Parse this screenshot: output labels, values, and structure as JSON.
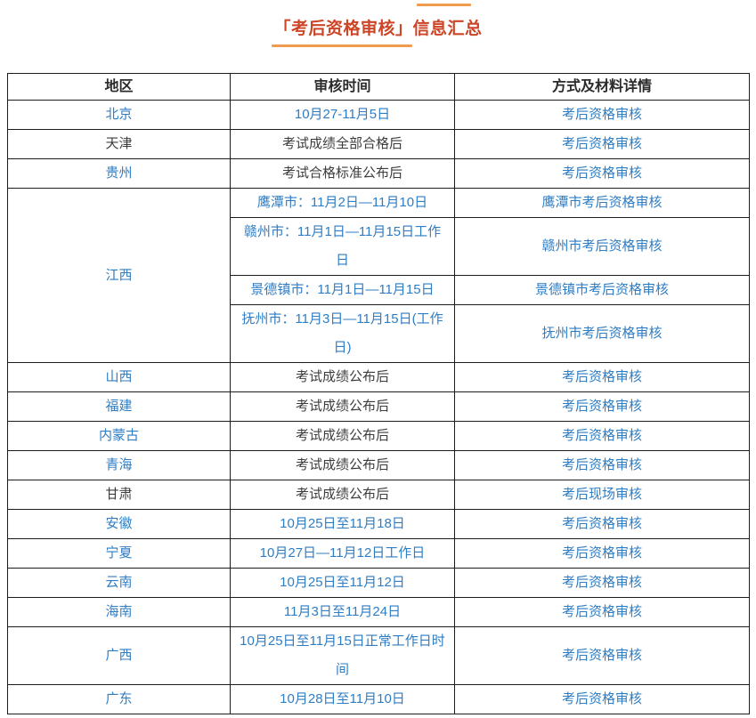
{
  "title": {
    "text": "「考后资格审核」信息汇总"
  },
  "colors": {
    "title_red": "#cd4527",
    "dash_orange": "#f09a4e",
    "link_blue": "#2f7dc3",
    "text_dark": "#3d3d3d",
    "border": "#1c1c1c"
  },
  "table": {
    "headers": [
      "地区",
      "审核时间",
      "方式及材料详情"
    ],
    "rows": [
      {
        "cells": [
          {
            "text": "北京",
            "color": "blue"
          },
          {
            "text": "10月27-11月5日",
            "color": "blue"
          },
          {
            "text": "考后资格审核",
            "color": "blue"
          }
        ]
      },
      {
        "cells": [
          {
            "text": "天津",
            "color": "dark"
          },
          {
            "text": "考试成绩全部合格后",
            "color": "dark"
          },
          {
            "text": "考后资格审核",
            "color": "blue"
          }
        ]
      },
      {
        "cells": [
          {
            "text": "贵州",
            "color": "blue"
          },
          {
            "text": "考试合格标准公布后",
            "color": "dark"
          },
          {
            "text": "考后资格审核",
            "color": "blue"
          }
        ]
      },
      {
        "cells": [
          {
            "text": "江西",
            "color": "blue",
            "rowspan": 4
          },
          {
            "text": "鹰潭市：11月2日—11月10日",
            "color": "blue"
          },
          {
            "text": "鹰潭市考后资格审核",
            "color": "blue"
          }
        ]
      },
      {
        "cells": [
          {
            "text": "赣州市：11月1日—11月15日工作日",
            "color": "blue"
          },
          {
            "text": "赣州市考后资格审核",
            "color": "blue"
          }
        ]
      },
      {
        "cells": [
          {
            "text": "景德镇市：11月1日—11月15日",
            "color": "blue"
          },
          {
            "text": "景德镇市考后资格审核",
            "color": "blue"
          }
        ]
      },
      {
        "cells": [
          {
            "text": "抚州市：11月3日—11月15日(工作日)",
            "color": "blue"
          },
          {
            "text": "抚州市考后资格审核",
            "color": "blue"
          }
        ]
      },
      {
        "cells": [
          {
            "text": "山西",
            "color": "blue"
          },
          {
            "text": "考试成绩公布后",
            "color": "dark"
          },
          {
            "text": "考后资格审核",
            "color": "blue"
          }
        ]
      },
      {
        "cells": [
          {
            "text": "福建",
            "color": "blue"
          },
          {
            "text": "考试成绩公布后",
            "color": "dark"
          },
          {
            "text": "考后资格审核",
            "color": "blue"
          }
        ]
      },
      {
        "cells": [
          {
            "text": "内蒙古",
            "color": "blue"
          },
          {
            "text": "考试成绩公布后",
            "color": "dark"
          },
          {
            "text": "考后资格审核",
            "color": "blue"
          }
        ]
      },
      {
        "cells": [
          {
            "text": "青海",
            "color": "blue"
          },
          {
            "text": "考试成绩公布后",
            "color": "dark"
          },
          {
            "text": "考后资格审核",
            "color": "blue"
          }
        ]
      },
      {
        "cells": [
          {
            "text": "甘肃",
            "color": "dark"
          },
          {
            "text": "考试成绩公布后",
            "color": "dark"
          },
          {
            "text": "考后现场审核",
            "color": "blue"
          }
        ]
      },
      {
        "cells": [
          {
            "text": "安徽",
            "color": "blue"
          },
          {
            "text": "10月25日至11月18日",
            "color": "blue"
          },
          {
            "text": "考后资格审核",
            "color": "blue"
          }
        ]
      },
      {
        "cells": [
          {
            "text": "宁夏",
            "color": "blue"
          },
          {
            "text": "10月27日—11月12日工作日",
            "color": "blue"
          },
          {
            "text": "考后资格审核",
            "color": "blue"
          }
        ]
      },
      {
        "cells": [
          {
            "text": "云南",
            "color": "blue"
          },
          {
            "text": "10月25日至11月12日",
            "color": "blue"
          },
          {
            "text": "考后资格审核",
            "color": "blue"
          }
        ]
      },
      {
        "cells": [
          {
            "text": "海南",
            "color": "blue"
          },
          {
            "text": "11月3日至11月24日",
            "color": "blue"
          },
          {
            "text": "考后资格审核",
            "color": "blue"
          }
        ]
      },
      {
        "cells": [
          {
            "text": "广西",
            "color": "blue"
          },
          {
            "text": "10月25日至11月15日正常工作日时间",
            "color": "blue"
          },
          {
            "text": "考后资格审核",
            "color": "blue"
          }
        ]
      },
      {
        "cells": [
          {
            "text": "广东",
            "color": "blue"
          },
          {
            "text": "10月28日至11月10日",
            "color": "blue"
          },
          {
            "text": "考后资格审核",
            "color": "blue"
          }
        ]
      }
    ]
  }
}
